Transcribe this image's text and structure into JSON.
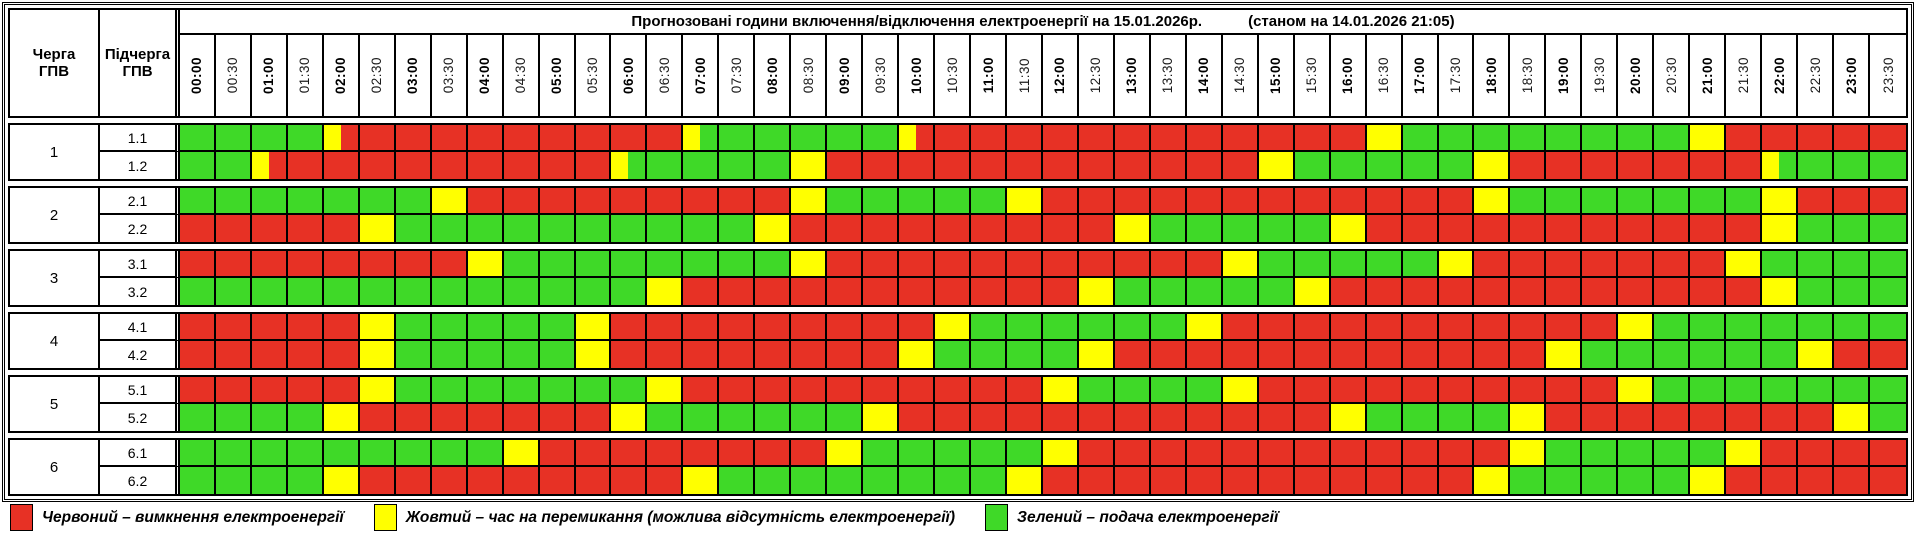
{
  "title": {
    "main": "Прогнозовані години включення/відключення електроенергії на 15.01.2026р.",
    "as_of": "(станом на 14.01.2026 21:05)"
  },
  "corner": {
    "queue_header": "Черга\nГПВ",
    "subqueue_header": "Підчерга\nГПВ"
  },
  "legend": {
    "items": [
      {
        "color": "#e73125",
        "key": "R",
        "label": "Червоний – вимкнення електроенергії"
      },
      {
        "color": "#ffff00",
        "key": "Y",
        "label": "Жовтий – час на перемикання (можлива відсутність електроенергії)"
      },
      {
        "color": "#3fd928",
        "key": "G",
        "label": "Зелений – подача електроенергії"
      }
    ]
  },
  "chart_data": {
    "type": "heatmap",
    "x": [
      "00:00",
      "00:30",
      "01:00",
      "01:30",
      "02:00",
      "02:30",
      "03:00",
      "03:30",
      "04:00",
      "04:30",
      "05:00",
      "05:30",
      "06:00",
      "06:30",
      "07:00",
      "07:30",
      "08:00",
      "08:30",
      "09:00",
      "09:30",
      "10:00",
      "10:30",
      "11:00",
      "11:30",
      "12:00",
      "12:30",
      "13:00",
      "13:30",
      "14:00",
      "14:30",
      "15:00",
      "15:30",
      "16:00",
      "16:30",
      "17:00",
      "17:30",
      "18:00",
      "18:30",
      "19:00",
      "19:30",
      "20:00",
      "20:30",
      "21:00",
      "21:30",
      "22:00",
      "22:30",
      "23:00",
      "23:30"
    ],
    "cell_colors": {
      "R": "#e73125",
      "G": "#3fd928",
      "Y": "#ffff00"
    },
    "cell_meaning": {
      "R": "відключення (red, power off)",
      "G": "подача (green, power on)",
      "Y": "перемикання (yellow, switching, full 30-min cell)",
      "YR": "first 15 min yellow, then red",
      "YG": "first 15 min yellow, then green"
    },
    "rows": [
      {
        "queue": "1",
        "subqueue": "1.1",
        "cells": [
          "G",
          "G",
          "G",
          "G",
          "YR",
          "R",
          "R",
          "R",
          "R",
          "R",
          "R",
          "R",
          "R",
          "R",
          "YG",
          "G",
          "G",
          "G",
          "G",
          "G",
          "YR",
          "R",
          "R",
          "R",
          "R",
          "R",
          "R",
          "R",
          "R",
          "R",
          "R",
          "R",
          "R",
          "Y",
          "G",
          "G",
          "G",
          "G",
          "G",
          "G",
          "G",
          "G",
          "Y",
          "R",
          "R",
          "R",
          "R",
          "R"
        ]
      },
      {
        "queue": "1",
        "subqueue": "1.2",
        "cells": [
          "G",
          "G",
          "YR",
          "R",
          "R",
          "R",
          "R",
          "R",
          "R",
          "R",
          "R",
          "R",
          "YG",
          "G",
          "G",
          "G",
          "G",
          "Y",
          "R",
          "R",
          "R",
          "R",
          "R",
          "R",
          "R",
          "R",
          "R",
          "R",
          "R",
          "R",
          "Y",
          "G",
          "G",
          "G",
          "G",
          "G",
          "Y",
          "R",
          "R",
          "R",
          "R",
          "R",
          "R",
          "R",
          "YG",
          "G",
          "G",
          "G"
        ]
      },
      {
        "queue": "2",
        "subqueue": "2.1",
        "cells": [
          "G",
          "G",
          "G",
          "G",
          "G",
          "G",
          "G",
          "Y",
          "R",
          "R",
          "R",
          "R",
          "R",
          "R",
          "R",
          "R",
          "R",
          "Y",
          "G",
          "G",
          "G",
          "G",
          "G",
          "Y",
          "R",
          "R",
          "R",
          "R",
          "R",
          "R",
          "R",
          "R",
          "R",
          "R",
          "R",
          "R",
          "Y",
          "G",
          "G",
          "G",
          "G",
          "G",
          "G",
          "G",
          "Y",
          "R",
          "R",
          "R"
        ]
      },
      {
        "queue": "2",
        "subqueue": "2.2",
        "cells": [
          "R",
          "R",
          "R",
          "R",
          "R",
          "Y",
          "G",
          "G",
          "G",
          "G",
          "G",
          "G",
          "G",
          "G",
          "G",
          "G",
          "Y",
          "R",
          "R",
          "R",
          "R",
          "R",
          "R",
          "R",
          "R",
          "R",
          "Y",
          "G",
          "G",
          "G",
          "G",
          "G",
          "Y",
          "R",
          "R",
          "R",
          "R",
          "R",
          "R",
          "R",
          "R",
          "R",
          "R",
          "R",
          "Y",
          "G",
          "G",
          "G"
        ]
      },
      {
        "queue": "3",
        "subqueue": "3.1",
        "cells": [
          "R",
          "R",
          "R",
          "R",
          "R",
          "R",
          "R",
          "R",
          "Y",
          "G",
          "G",
          "G",
          "G",
          "G",
          "G",
          "G",
          "G",
          "Y",
          "R",
          "R",
          "R",
          "R",
          "R",
          "R",
          "R",
          "R",
          "R",
          "R",
          "R",
          "Y",
          "G",
          "G",
          "G",
          "G",
          "G",
          "Y",
          "R",
          "R",
          "R",
          "R",
          "R",
          "R",
          "R",
          "Y",
          "G",
          "G",
          "G",
          "G"
        ]
      },
      {
        "queue": "3",
        "subqueue": "3.2",
        "cells": [
          "G",
          "G",
          "G",
          "G",
          "G",
          "G",
          "G",
          "G",
          "G",
          "G",
          "G",
          "G",
          "G",
          "Y",
          "R",
          "R",
          "R",
          "R",
          "R",
          "R",
          "R",
          "R",
          "R",
          "R",
          "R",
          "Y",
          "G",
          "G",
          "G",
          "G",
          "G",
          "Y",
          "R",
          "R",
          "R",
          "R",
          "R",
          "R",
          "R",
          "R",
          "R",
          "R",
          "R",
          "R",
          "Y",
          "G",
          "G",
          "G"
        ]
      },
      {
        "queue": "4",
        "subqueue": "4.1",
        "cells": [
          "R",
          "R",
          "R",
          "R",
          "R",
          "Y",
          "G",
          "G",
          "G",
          "G",
          "G",
          "Y",
          "R",
          "R",
          "R",
          "R",
          "R",
          "R",
          "R",
          "R",
          "R",
          "Y",
          "G",
          "G",
          "G",
          "G",
          "G",
          "G",
          "Y",
          "R",
          "R",
          "R",
          "R",
          "R",
          "R",
          "R",
          "R",
          "R",
          "R",
          "R",
          "Y",
          "G",
          "G",
          "G",
          "G",
          "G",
          "G",
          "G"
        ]
      },
      {
        "queue": "4",
        "subqueue": "4.2",
        "cells": [
          "R",
          "R",
          "R",
          "R",
          "R",
          "Y",
          "G",
          "G",
          "G",
          "G",
          "G",
          "Y",
          "R",
          "R",
          "R",
          "R",
          "R",
          "R",
          "R",
          "R",
          "Y",
          "G",
          "G",
          "G",
          "G",
          "Y",
          "R",
          "R",
          "R",
          "R",
          "R",
          "R",
          "R",
          "R",
          "R",
          "R",
          "R",
          "R",
          "Y",
          "G",
          "G",
          "G",
          "G",
          "G",
          "G",
          "Y",
          "R",
          "R"
        ]
      },
      {
        "queue": "5",
        "subqueue": "5.1",
        "cells": [
          "R",
          "R",
          "R",
          "R",
          "R",
          "Y",
          "G",
          "G",
          "G",
          "G",
          "G",
          "G",
          "G",
          "Y",
          "R",
          "R",
          "R",
          "R",
          "R",
          "R",
          "R",
          "R",
          "R",
          "R",
          "Y",
          "G",
          "G",
          "G",
          "G",
          "Y",
          "R",
          "R",
          "R",
          "R",
          "R",
          "R",
          "R",
          "R",
          "R",
          "R",
          "Y",
          "G",
          "G",
          "G",
          "G",
          "G",
          "G",
          "G"
        ]
      },
      {
        "queue": "5",
        "subqueue": "5.2",
        "cells": [
          "G",
          "G",
          "G",
          "G",
          "Y",
          "R",
          "R",
          "R",
          "R",
          "R",
          "R",
          "R",
          "Y",
          "G",
          "G",
          "G",
          "G",
          "G",
          "G",
          "Y",
          "R",
          "R",
          "R",
          "R",
          "R",
          "R",
          "R",
          "R",
          "R",
          "R",
          "R",
          "R",
          "Y",
          "G",
          "G",
          "G",
          "G",
          "Y",
          "R",
          "R",
          "R",
          "R",
          "R",
          "R",
          "R",
          "R",
          "Y",
          "G"
        ]
      },
      {
        "queue": "6",
        "subqueue": "6.1",
        "cells": [
          "G",
          "G",
          "G",
          "G",
          "G",
          "G",
          "G",
          "G",
          "G",
          "Y",
          "R",
          "R",
          "R",
          "R",
          "R",
          "R",
          "R",
          "R",
          "Y",
          "G",
          "G",
          "G",
          "G",
          "G",
          "Y",
          "R",
          "R",
          "R",
          "R",
          "R",
          "R",
          "R",
          "R",
          "R",
          "R",
          "R",
          "R",
          "Y",
          "G",
          "G",
          "G",
          "G",
          "G",
          "Y",
          "R",
          "R",
          "R",
          "R"
        ]
      },
      {
        "queue": "6",
        "subqueue": "6.2",
        "cells": [
          "G",
          "G",
          "G",
          "G",
          "Y",
          "R",
          "R",
          "R",
          "R",
          "R",
          "R",
          "R",
          "R",
          "R",
          "Y",
          "G",
          "G",
          "G",
          "G",
          "G",
          "G",
          "G",
          "G",
          "Y",
          "R",
          "R",
          "R",
          "R",
          "R",
          "R",
          "R",
          "R",
          "R",
          "R",
          "R",
          "R",
          "Y",
          "G",
          "G",
          "G",
          "G",
          "G",
          "Y",
          "R",
          "R",
          "R",
          "R",
          "R"
        ]
      }
    ]
  }
}
